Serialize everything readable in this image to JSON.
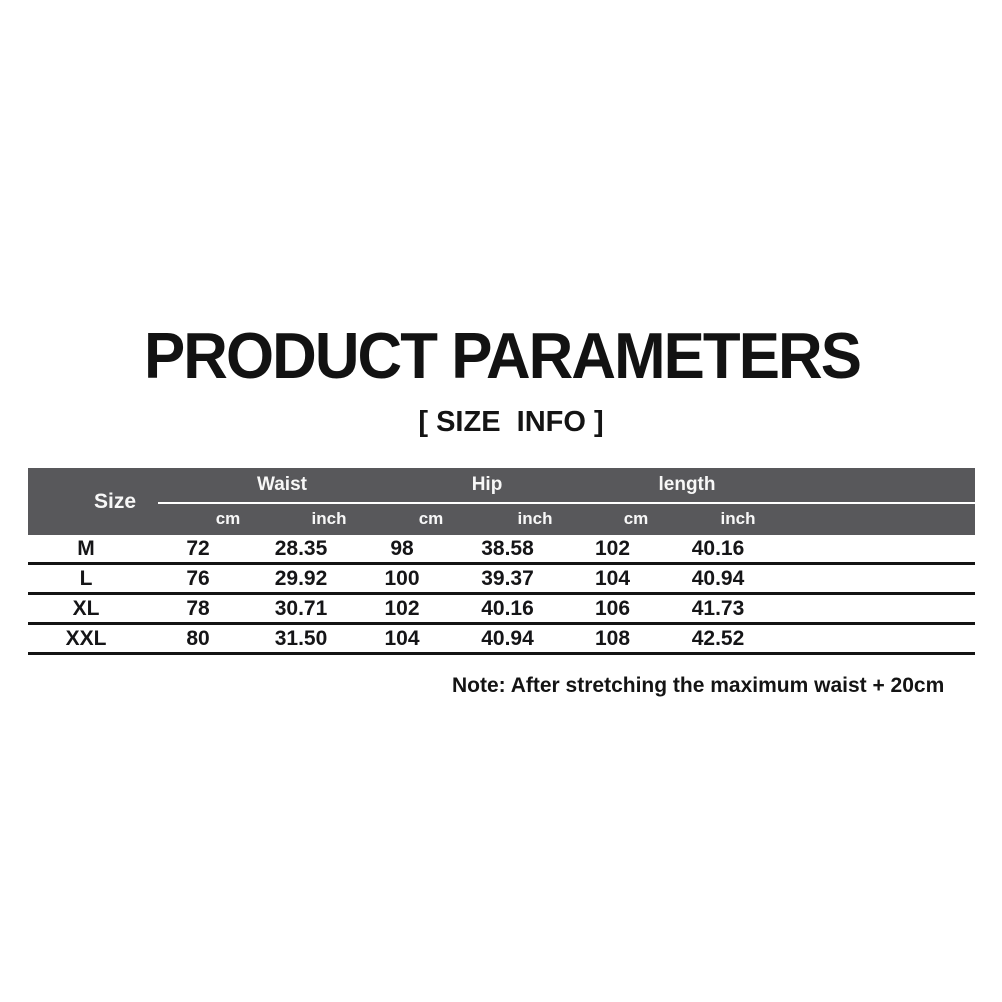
{
  "header": {
    "title": "PRODUCT PARAMETERS",
    "subtitle": "[ SIZE  INFO ]"
  },
  "table": {
    "size_label": "Size",
    "groups": [
      "Waist",
      "Hip",
      "length"
    ],
    "sub_headers": [
      "cm",
      "inch",
      "cm",
      "inch",
      "cm",
      "inch"
    ],
    "rows": [
      {
        "size": "M",
        "values": [
          "72",
          "28.35",
          "98",
          "38.58",
          "102",
          "40.16"
        ]
      },
      {
        "size": "L",
        "values": [
          "76",
          "29.92",
          "100",
          "39.37",
          "104",
          "40.94"
        ]
      },
      {
        "size": "XL",
        "values": [
          "78",
          "30.71",
          "102",
          "40.16",
          "106",
          "41.73"
        ]
      },
      {
        "size": "XXL",
        "values": [
          "80",
          "31.50",
          "104",
          "40.94",
          "108",
          "42.52"
        ]
      }
    ]
  },
  "note": {
    "text": "Note: After stretching the maximum waist + 20cm"
  },
  "colors": {
    "header_bg": "#58585b",
    "header_text": "#f7f7f7",
    "body_text": "#151517",
    "row_line": "#141414",
    "background": "#ffffff"
  }
}
